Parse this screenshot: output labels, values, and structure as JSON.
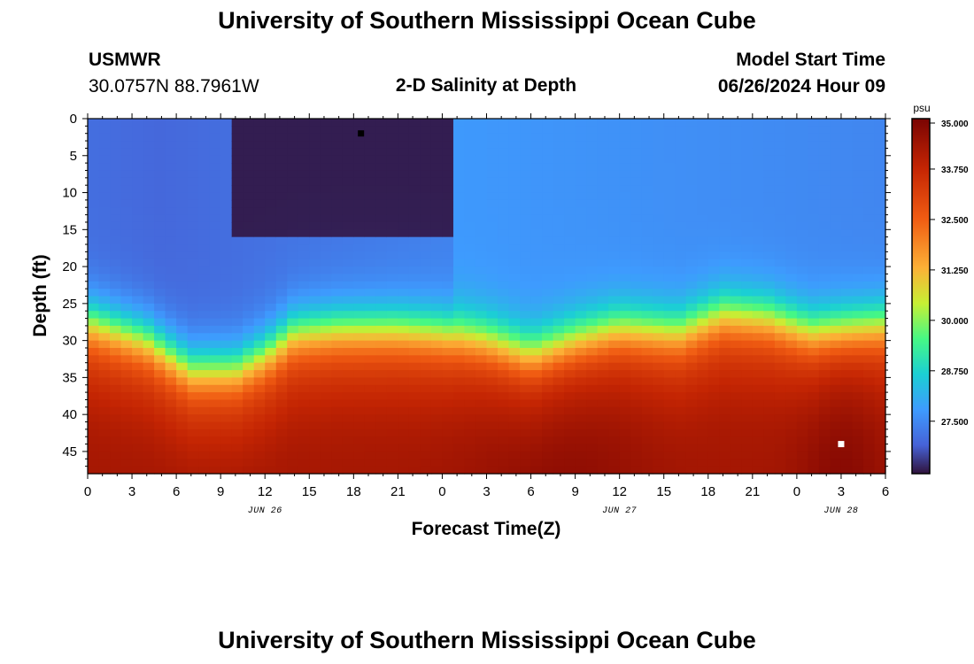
{
  "header": {
    "title": "University of Southern Mississippi Ocean Cube",
    "station": "USMWR",
    "coords": "30.0757N  88.7961W",
    "model_start_label": "Model Start Time",
    "model_start_value": "06/26/2024 Hour 09"
  },
  "footer": {
    "title": "University of Southern Mississippi Ocean Cube"
  },
  "chart_data": {
    "type": "heatmap",
    "title": "2-D Salinity at Depth",
    "xlabel": "Forecast Time(Z)",
    "ylabel": "Depth (ft)",
    "x_ticks": [
      "0",
      "3",
      "6",
      "9",
      "12",
      "15",
      "18",
      "21",
      "0",
      "3",
      "6",
      "9",
      "12",
      "15",
      "18",
      "21",
      "0",
      "3",
      "6"
    ],
    "x_hours_range": [
      0,
      54
    ],
    "date_labels": [
      {
        "hour": 12,
        "label": "JUN 26"
      },
      {
        "hour": 36,
        "label": "JUN 27"
      },
      {
        "hour": 51,
        "label": "JUN 28"
      }
    ],
    "y_ticks": [
      "0",
      "5",
      "10",
      "15",
      "20",
      "25",
      "30",
      "35",
      "40",
      "45"
    ],
    "ylim": [
      0,
      48
    ],
    "colorbar": {
      "unit": "psu",
      "min": 26.2,
      "max": 35.0,
      "tick_labels": [
        "35.000",
        "33.750",
        "32.500",
        "31.250",
        "30.000",
        "28.750",
        "27.500"
      ],
      "tick_values": [
        35.0,
        33.75,
        32.5,
        31.25,
        30.0,
        28.75,
        27.5
      ]
    },
    "markers": [
      {
        "name": "min-marker",
        "hour": 18.5,
        "depth": 2,
        "color": "#000000"
      },
      {
        "name": "max-marker",
        "hour": 51,
        "depth": 44,
        "color": "#ffffff"
      }
    ],
    "halocline_depth_ft": [
      {
        "hour": 0,
        "depth": 25.5
      },
      {
        "hour": 4,
        "depth": 28
      },
      {
        "hour": 7,
        "depth": 32
      },
      {
        "hour": 10,
        "depth": 32
      },
      {
        "hour": 12,
        "depth": 30
      },
      {
        "hour": 14,
        "depth": 27
      },
      {
        "hour": 17,
        "depth": 26.5
      },
      {
        "hour": 21,
        "depth": 26.5
      },
      {
        "hour": 24,
        "depth": 27
      },
      {
        "hour": 27,
        "depth": 28
      },
      {
        "hour": 30,
        "depth": 30
      },
      {
        "hour": 33,
        "depth": 28
      },
      {
        "hour": 36,
        "depth": 26.5
      },
      {
        "hour": 40,
        "depth": 27
      },
      {
        "hour": 43,
        "depth": 24.5
      },
      {
        "hour": 46,
        "depth": 25
      },
      {
        "hour": 49,
        "depth": 27
      },
      {
        "hour": 54,
        "depth": 26
      }
    ]
  }
}
